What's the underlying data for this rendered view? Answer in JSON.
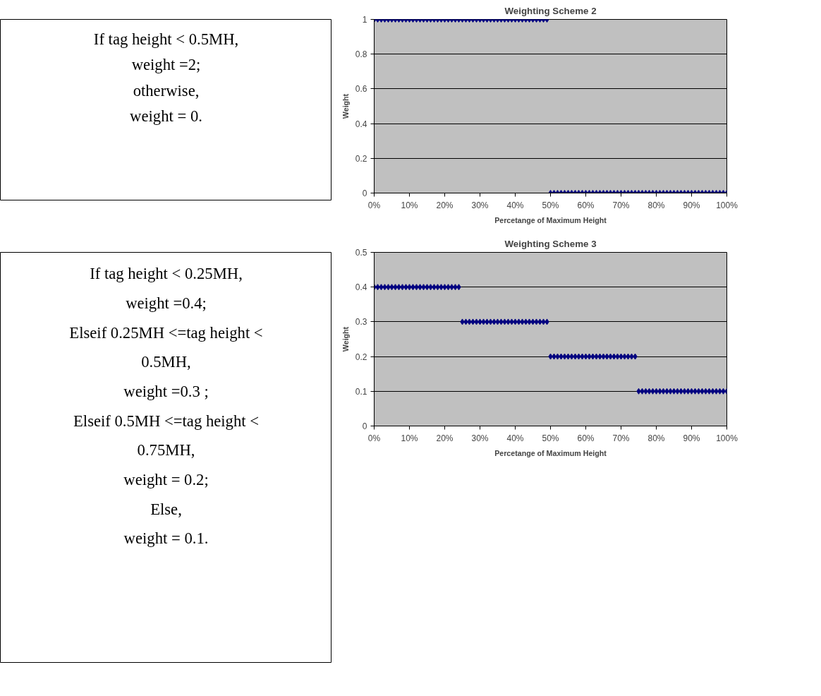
{
  "chart_data": [
    {
      "type": "other",
      "annotations": [
        "If tag height < 0.5MH,",
        "weight =2;",
        "otherwise,",
        "weight = 0."
      ]
    },
    {
      "type": "scatter",
      "title": "Weighting Scheme 2",
      "xlabel": "Percetange of Maximum Height",
      "ylabel": "Weight",
      "color": "#000080",
      "marker": "diamond",
      "grid": "y",
      "xlim": [
        0,
        100
      ],
      "ylim": [
        0,
        1
      ],
      "xticks": [
        {
          "value": 0,
          "label": "0%"
        },
        {
          "value": 10,
          "label": "10%"
        },
        {
          "value": 20,
          "label": "20%"
        },
        {
          "value": 30,
          "label": "30%"
        },
        {
          "value": 40,
          "label": "40%"
        },
        {
          "value": 50,
          "label": "50%"
        },
        {
          "value": 60,
          "label": "60%"
        },
        {
          "value": 70,
          "label": "70%"
        },
        {
          "value": 80,
          "label": "80%"
        },
        {
          "value": 90,
          "label": "90%"
        },
        {
          "value": 100,
          "label": "100%"
        }
      ],
      "yticks": [
        0,
        0.2,
        0.4,
        0.6,
        0.8,
        1
      ],
      "x": [
        0,
        1,
        2,
        3,
        4,
        5,
        6,
        7,
        8,
        9,
        10,
        11,
        12,
        13,
        14,
        15,
        16,
        17,
        18,
        19,
        20,
        21,
        22,
        23,
        24,
        25,
        26,
        27,
        28,
        29,
        30,
        31,
        32,
        33,
        34,
        35,
        36,
        37,
        38,
        39,
        40,
        41,
        42,
        43,
        44,
        45,
        46,
        47,
        48,
        49,
        50,
        51,
        52,
        53,
        54,
        55,
        56,
        57,
        58,
        59,
        60,
        61,
        62,
        63,
        64,
        65,
        66,
        67,
        68,
        69,
        70,
        71,
        72,
        73,
        74,
        75,
        76,
        77,
        78,
        79,
        80,
        81,
        82,
        83,
        84,
        85,
        86,
        87,
        88,
        89,
        90,
        91,
        92,
        93,
        94,
        95,
        96,
        97,
        98,
        99,
        100
      ],
      "values": [
        1,
        1,
        1,
        1,
        1,
        1,
        1,
        1,
        1,
        1,
        1,
        1,
        1,
        1,
        1,
        1,
        1,
        1,
        1,
        1,
        1,
        1,
        1,
        1,
        1,
        1,
        1,
        1,
        1,
        1,
        1,
        1,
        1,
        1,
        1,
        1,
        1,
        1,
        1,
        1,
        1,
        1,
        1,
        1,
        1,
        1,
        1,
        1,
        1,
        1,
        0,
        0,
        0,
        0,
        0,
        0,
        0,
        0,
        0,
        0,
        0,
        0,
        0,
        0,
        0,
        0,
        0,
        0,
        0,
        0,
        0,
        0,
        0,
        0,
        0,
        0,
        0,
        0,
        0,
        0,
        0,
        0,
        0,
        0,
        0,
        0,
        0,
        0,
        0,
        0,
        0,
        0,
        0,
        0,
        0,
        0,
        0,
        0,
        0,
        0,
        0
      ]
    },
    {
      "type": "other",
      "annotations": [
        "If tag height < 0.25MH,",
        "weight =0.4;",
        "Elseif 0.25MH <=tag height <",
        "0.5MH,",
        "weight =0.3 ;",
        "Elseif 0.5MH <=tag height <",
        "0.75MH,",
        "weight = 0.2;",
        "Else,",
        "weight = 0.1."
      ]
    },
    {
      "type": "scatter",
      "title": "Weighting Scheme 3",
      "xlabel": "Percetange of Maximum Height",
      "ylabel": "Weight",
      "color": "#000080",
      "marker": "diamond",
      "grid": "y",
      "xlim": [
        0,
        100
      ],
      "ylim": [
        0,
        0.5
      ],
      "xticks": [
        {
          "value": 0,
          "label": "0%"
        },
        {
          "value": 10,
          "label": "10%"
        },
        {
          "value": 20,
          "label": "20%"
        },
        {
          "value": 30,
          "label": "30%"
        },
        {
          "value": 40,
          "label": "40%"
        },
        {
          "value": 50,
          "label": "50%"
        },
        {
          "value": 60,
          "label": "60%"
        },
        {
          "value": 70,
          "label": "70%"
        },
        {
          "value": 80,
          "label": "80%"
        },
        {
          "value": 90,
          "label": "90%"
        },
        {
          "value": 100,
          "label": "100%"
        }
      ],
      "yticks": [
        0,
        0.1,
        0.2,
        0.3,
        0.4,
        0.5
      ],
      "x": [
        0,
        1,
        2,
        3,
        4,
        5,
        6,
        7,
        8,
        9,
        10,
        11,
        12,
        13,
        14,
        15,
        16,
        17,
        18,
        19,
        20,
        21,
        22,
        23,
        24,
        25,
        26,
        27,
        28,
        29,
        30,
        31,
        32,
        33,
        34,
        35,
        36,
        37,
        38,
        39,
        40,
        41,
        42,
        43,
        44,
        45,
        46,
        47,
        48,
        49,
        50,
        51,
        52,
        53,
        54,
        55,
        56,
        57,
        58,
        59,
        60,
        61,
        62,
        63,
        64,
        65,
        66,
        67,
        68,
        69,
        70,
        71,
        72,
        73,
        74,
        75,
        76,
        77,
        78,
        79,
        80,
        81,
        82,
        83,
        84,
        85,
        86,
        87,
        88,
        89,
        90,
        91,
        92,
        93,
        94,
        95,
        96,
        97,
        98,
        99,
        100
      ],
      "values": [
        0.4,
        0.4,
        0.4,
        0.4,
        0.4,
        0.4,
        0.4,
        0.4,
        0.4,
        0.4,
        0.4,
        0.4,
        0.4,
        0.4,
        0.4,
        0.4,
        0.4,
        0.4,
        0.4,
        0.4,
        0.4,
        0.4,
        0.4,
        0.4,
        0.4,
        0.3,
        0.3,
        0.3,
        0.3,
        0.3,
        0.3,
        0.3,
        0.3,
        0.3,
        0.3,
        0.3,
        0.3,
        0.3,
        0.3,
        0.3,
        0.3,
        0.3,
        0.3,
        0.3,
        0.3,
        0.3,
        0.3,
        0.3,
        0.3,
        0.3,
        0.2,
        0.2,
        0.2,
        0.2,
        0.2,
        0.2,
        0.2,
        0.2,
        0.2,
        0.2,
        0.2,
        0.2,
        0.2,
        0.2,
        0.2,
        0.2,
        0.2,
        0.2,
        0.2,
        0.2,
        0.2,
        0.2,
        0.2,
        0.2,
        0.2,
        0.1,
        0.1,
        0.1,
        0.1,
        0.1,
        0.1,
        0.1,
        0.1,
        0.1,
        0.1,
        0.1,
        0.1,
        0.1,
        0.1,
        0.1,
        0.1,
        0.1,
        0.1,
        0.1,
        0.1,
        0.1,
        0.1,
        0.1,
        0.1,
        0.1,
        0.1
      ]
    }
  ]
}
